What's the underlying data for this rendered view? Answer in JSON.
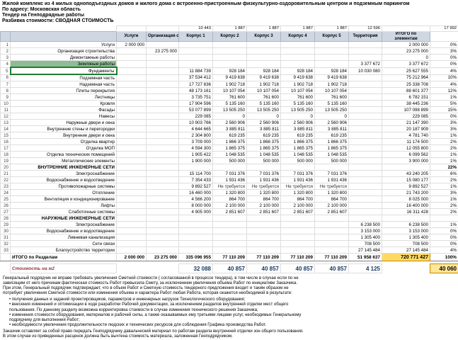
{
  "header": {
    "title": "Жилой комплекс из 4 жилых одноподъездных домов и жилого дома с встроенно-пристроенным физкультурно-оздоровительным центром и подземным паркингом",
    "address": "По адресу: Московская область",
    "tender": "Тендер на Генподрядные работы",
    "breakdown": "Разбивка стоимости: СВОДНАЯ СТОИМОСТЬ"
  },
  "table": {
    "areas": {
      "k1": "10 443",
      "k2": "1 887",
      "k3": "1 887",
      "k4": "1 887",
      "k5": "1 887",
      "terr": "12 596",
      "total": "17 992"
    },
    "columns": [
      "Услуги",
      "Организация строительства",
      "Корпус 1",
      "Корпус 2",
      "Корпус 3",
      "Корпус 4",
      "Корпус 5",
      "Территория",
      "ИТОГО по элементам",
      ""
    ],
    "rows": [
      {
        "n": "1",
        "name": "Услуги",
        "cells": [
          "2 000 000",
          "",
          "",
          "",
          "",
          "",
          "",
          ""
        ],
        "total": "2 000 000",
        "pct": "0%"
      },
      {
        "n": "2",
        "name": "Организация строительства",
        "cells": [
          "",
          "23 275 000",
          "",
          "",
          "",
          "",
          "",
          ""
        ],
        "total": "23 275 000",
        "pct": "3%"
      },
      {
        "n": "3",
        "name": "Демонтажные работы",
        "cells": [
          "",
          "",
          "",
          "",
          "",
          "",
          "",
          ""
        ],
        "total": "0",
        "pct": "0%"
      },
      {
        "n": "4",
        "name": "Земляные работы",
        "fill": true,
        "cells": [
          "",
          "",
          "",
          "",
          "",
          "",
          "",
          "3 377 672"
        ],
        "total": "3 377 672",
        "pct": "0%"
      },
      {
        "n": "5",
        "name": "Фундаменты",
        "sel": true,
        "cells": [
          "",
          "",
          "11 884 739",
          "928 184",
          "928 184",
          "928 184",
          "928 184",
          "10 030 080"
        ],
        "total": "25 627 555",
        "pct": "4%"
      },
      {
        "n": "6",
        "name": "Подземная часть",
        "cells": [
          "",
          "",
          "37 534 412",
          "9 419 638",
          "9 419 638",
          "9 419 638",
          "9 419 638",
          ""
        ],
        "total": "75 212 964",
        "pct": "10%"
      },
      {
        "n": "7",
        "name": "Надземная часть",
        "cells": [
          "",
          "",
          "17 727 836",
          "1 902 718",
          "1 902 718",
          "1 902 718",
          "1 902 718",
          ""
        ],
        "total": "25 338 708",
        "pct": "4%"
      },
      {
        "n": "8",
        "name": "Плиты перекрытия",
        "cells": [
          "",
          "",
          "48 173 161",
          "10 107 054",
          "10 107 054",
          "10 107 054",
          "10 107 054",
          ""
        ],
        "total": "88 601 377",
        "pct": "12%"
      },
      {
        "n": "9",
        "name": "Лестницы",
        "cells": [
          "",
          "",
          "3 735 751",
          "761 600",
          "761 600",
          "761 600",
          "761 600",
          ""
        ],
        "total": "6 782 151",
        "pct": "1%"
      },
      {
        "n": "10",
        "name": "Кровля",
        "cells": [
          "",
          "",
          "17 904 596",
          "5 135 160",
          "5 135 160",
          "5 135 160",
          "5 135 160",
          ""
        ],
        "total": "38 445 236",
        "pct": "5%"
      },
      {
        "n": "11",
        "name": "Фасады",
        "cells": [
          "",
          "",
          "53 077 899",
          "13 505 250",
          "13 505 250",
          "13 505 250",
          "13 505 250",
          ""
        ],
        "total": "107 098 899",
        "pct": "15%"
      },
      {
        "n": "12",
        "name": "Навесы",
        "cells": [
          "",
          "",
          "229 085",
          "0",
          "0",
          "0",
          "0",
          ""
        ],
        "total": "229 085",
        "pct": "0%"
      },
      {
        "n": "13",
        "name": "Наружные двери и окна",
        "cells": [
          "",
          "",
          "10 903 766",
          "2 560 906",
          "2 560 906",
          "2 560 906",
          "2 560 906",
          ""
        ],
        "total": "21 147 390",
        "pct": "3%"
      },
      {
        "n": "14",
        "name": "Внутренние стены и перегородки",
        "cells": [
          "",
          "",
          "4 644 665",
          "3 885 811",
          "3 885 811",
          "3 885 811",
          "3 885 811",
          ""
        ],
        "total": "20 187 909",
        "pct": "3%"
      },
      {
        "n": "15",
        "name": "Внутренние двери и окна",
        "cells": [
          "",
          "",
          "2 304 800",
          "619 235",
          "619 235",
          "619 235",
          "619 235",
          ""
        ],
        "total": "4 781 740",
        "pct": "1%"
      },
      {
        "n": "16",
        "name": "Отделка квартир",
        "cells": [
          "",
          "",
          "3 709 000",
          "1 866 375",
          "1 866 375",
          "1 866 375",
          "1 866 375",
          ""
        ],
        "total": "11 174 500",
        "pct": "2%"
      },
      {
        "n": "17",
        "name": "Отделка МОП",
        "cells": [
          "",
          "",
          "4 594 300",
          "1 865 375",
          "1 865 375",
          "1 865 375",
          "1 865 375",
          ""
        ],
        "total": "12 055 800",
        "pct": "2%"
      },
      {
        "n": "18",
        "name": "Отделка технических помещений",
        "cells": [
          "",
          "",
          "1 905 422",
          "1 048 535",
          "1 048 535",
          "1 048 535",
          "1 048 535",
          ""
        ],
        "total": "6 099 562",
        "pct": "1%"
      },
      {
        "n": "19",
        "name": "Металлические элементы",
        "cells": [
          "",
          "",
          "1 900 000",
          "500 000",
          "500 000",
          "500 000",
          "500 000",
          ""
        ],
        "total": "3 900 000",
        "pct": "1%"
      },
      {
        "n": "20",
        "name": "ВНУТРЕННИЕ ИНЖЕНЕРНЫЕ СЕТИ",
        "section": true,
        "cells": [
          "",
          "",
          "",
          "",
          "",
          "",
          "",
          ""
        ],
        "total": "",
        "pct": "22%"
      },
      {
        "n": "21",
        "name": "Электроснабжение",
        "cells": [
          "",
          "",
          "15 114 700",
          "7 031 376",
          "7 031 376",
          "7 031 376",
          "7 031 376",
          ""
        ],
        "total": "43 240 205",
        "pct": "6%"
      },
      {
        "n": "22",
        "name": "Водоснабжение и водоотведение",
        "cells": [
          "",
          "",
          "7 354 433",
          "1 931 436",
          "1 931 436",
          "1 931 436",
          "1 931 436",
          ""
        ],
        "total": "15 080 177",
        "pct": "2%"
      },
      {
        "n": "23",
        "name": "Противопожарные системы",
        "cells": [
          "",
          "",
          "9 892 527",
          "Не требуется",
          "Не требуется",
          "Не требуется",
          "Не требуется",
          ""
        ],
        "total": "9 892 527",
        "pct": "1%"
      },
      {
        "n": "24",
        "name": "Отопление",
        "cells": [
          "",
          "",
          "16 460 000",
          "1 320 800",
          "1 320 800",
          "1 320 800",
          "1 320 800",
          ""
        ],
        "total": "21 743 200",
        "pct": "3%"
      },
      {
        "n": "25",
        "name": "Вентиляция и кондиционирование",
        "cells": [
          "",
          "",
          "4 566 200",
          "864 700",
          "864 700",
          "864 700",
          "864 700",
          ""
        ],
        "total": "8 025 000",
        "pct": "1%"
      },
      {
        "n": "26",
        "name": "Лифты",
        "cells": [
          "",
          "",
          "8 000 000",
          "2 100 000",
          "2 100 000",
          "2 100 000",
          "2 100 000",
          ""
        ],
        "total": "16 400 000",
        "pct": "2%"
      },
      {
        "n": "27",
        "name": "Слаботочные системы",
        "cells": [
          "",
          "",
          "4 905 000",
          "2 851 607",
          "2 851 607",
          "2 851 607",
          "2 851 607",
          ""
        ],
        "total": "16 311 428",
        "pct": "2%"
      },
      {
        "n": "28",
        "name": "НАРУЖНЫЕ ИНЖЕНЕРНЫЕ СЕТИ",
        "section": true,
        "cells": [
          "",
          "",
          "",
          "",
          "",
          "",
          "",
          ""
        ],
        "total": "",
        "pct": ""
      },
      {
        "n": "29",
        "name": "Электроснабжение",
        "cells": [
          "",
          "",
          "",
          "",
          "",
          "",
          "",
          "6 238 500"
        ],
        "total": "6 238 500",
        "pct": "1%"
      },
      {
        "n": "30",
        "name": "Водоснабжение и водоотведение",
        "cells": [
          "",
          "",
          "",
          "",
          "",
          "",
          "",
          "3 153 000"
        ],
        "total": "3 153 000",
        "pct": "0%"
      },
      {
        "n": "31",
        "name": "Ливневая канализация",
        "cells": [
          "",
          "",
          "",
          "",
          "",
          "",
          "",
          "1 305 400"
        ],
        "total": "1 305 400",
        "pct": "0%"
      },
      {
        "n": "32",
        "name": "Сети связи",
        "cells": [
          "",
          "",
          "",
          "",
          "",
          "",
          "",
          "708 500"
        ],
        "total": "708 500",
        "pct": "0%"
      },
      {
        "n": "33",
        "name": "Благоустройство территории",
        "cells": [
          "",
          "",
          "",
          "",
          "",
          "",
          "",
          "27 145 484"
        ],
        "total": "27 145 484",
        "pct": "4%"
      }
    ],
    "totals": {
      "label": "ИТОГО по Разделам",
      "cells": [
        "2 000 000",
        "23 275 000",
        "335 096 955",
        "77 110 209",
        "77 110 209",
        "77 110 209",
        "77 110 209",
        "51 958 637"
      ],
      "total": "720 771 427",
      "pct": "100%"
    },
    "per_m2": {
      "label": "Стоимость на м2",
      "cells": [
        "",
        "",
        "32 088",
        "40 857",
        "40 857",
        "40 857",
        "40 857",
        "4 125"
      ],
      "total": "",
      "pct": "40 060"
    }
  },
  "footer": {
    "paragraph1": "Генеральный подрядчик не вправе требовать увеличения Сметной стоимости ( согласованной в процессе тендера), в том числе в случае если по не зависящим от него причинам фактическая стоимость Работ превысила Смету, за исключением увеличения объема Работ по инициативе Заказчика. При этом, Генеральный подрядчик подтверждает, что в объем Работ и Сметную стоимость тендерного предложения входит и таким образом не потребует увеличения Сметной стоимости или изменения объема и характера Работ любая Работа, которая окажется необходимой в результате:",
    "bullets": [
      "получения данных и заданий проектировщиков, параметров и инженерных нагрузок Технологического оборудования;",
      "внесения изменений и оптимизации в ходе разработки Рабочей документации, за исключением разделов внутренней отделки мест общего пользования. По данному разделу возможна корректировка стоимости в случае изменения технического решения Заказчика;",
      "изменения стоимости оборудования, материалов и рабочей силы, а также оказываемых ему третьими лицами услуг, необходимых Генеральному подрядчику для выполнения Работ;",
      "необходимости увеличения продолжительности людских и технических ресурсов для соблюдения Графика производства Работ."
    ],
    "paragraph2": "Заказчик оставляет за собой право передать Генподрядчику давальческий материал по работам раздела внутренней отделки зон общего пользования. В этом случае из приведенных расценок должна быть вычтена стоимость материала, заложенная Генподрядчиком."
  }
}
